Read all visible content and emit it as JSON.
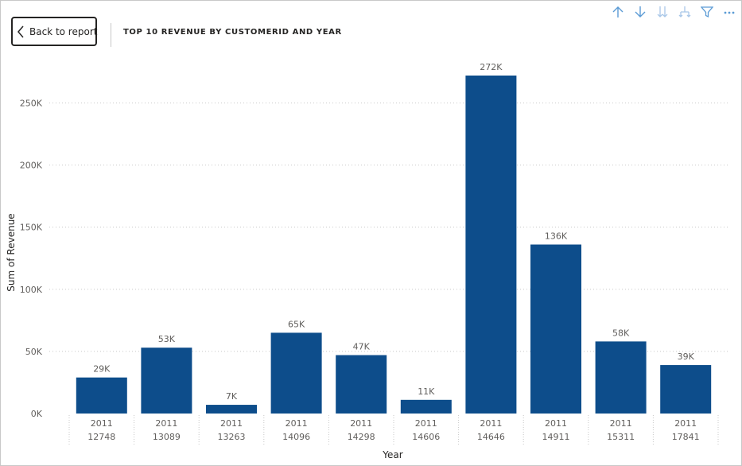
{
  "back_button": {
    "label": "Back to report"
  },
  "header": {
    "title": "TOP 10 REVENUE BY CUSTOMERID AND YEAR"
  },
  "toolbar_icons": [
    "arrow-up-icon",
    "arrow-down-icon",
    "expand-all-down-icon",
    "expand-hierarchy-icon",
    "filter-icon",
    "more-options-icon"
  ],
  "colors": {
    "bar": "#0d4d8b",
    "accent_icon": "#5b9bd5",
    "text": "#252423",
    "axis_text": "#605e5c"
  },
  "chart_data": {
    "type": "bar",
    "title": "TOP 10 REVENUE BY CUSTOMERID AND YEAR",
    "xlabel": "Year",
    "ylabel": "Sum of Revenue",
    "ylim": [
      0,
      272000
    ],
    "yticks": [
      {
        "value": 0,
        "label": "0K"
      },
      {
        "value": 50000,
        "label": "50K"
      },
      {
        "value": 100000,
        "label": "100K"
      },
      {
        "value": 150000,
        "label": "150K"
      },
      {
        "value": 200000,
        "label": "200K"
      },
      {
        "value": 250000,
        "label": "250K"
      }
    ],
    "grid": true,
    "categories": [
      {
        "year": "2011",
        "customer": "12748"
      },
      {
        "year": "2011",
        "customer": "13089"
      },
      {
        "year": "2011",
        "customer": "13263"
      },
      {
        "year": "2011",
        "customer": "14096"
      },
      {
        "year": "2011",
        "customer": "14298"
      },
      {
        "year": "2011",
        "customer": "14606"
      },
      {
        "year": "2011",
        "customer": "14646"
      },
      {
        "year": "2011",
        "customer": "14911"
      },
      {
        "year": "2011",
        "customer": "15311"
      },
      {
        "year": "2011",
        "customer": "17841"
      }
    ],
    "values": [
      29000,
      53000,
      7000,
      65000,
      47000,
      11000,
      272000,
      136000,
      58000,
      39000
    ],
    "data_labels": [
      "29K",
      "53K",
      "7K",
      "65K",
      "47K",
      "11K",
      "272K",
      "136K",
      "58K",
      "39K"
    ]
  }
}
